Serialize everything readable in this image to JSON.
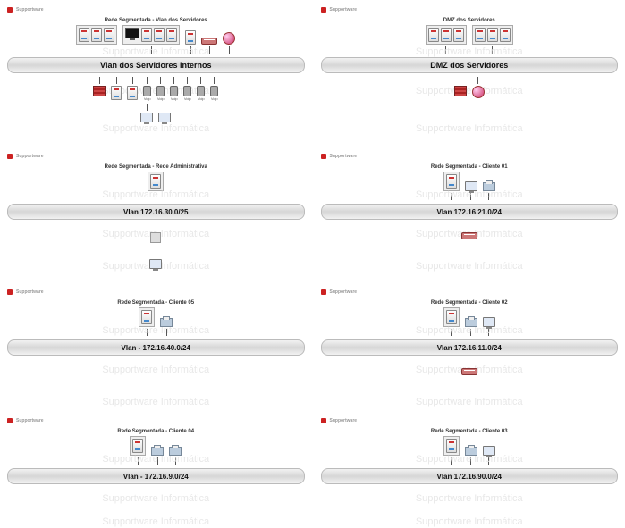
{
  "company_logo_text": "Supportware",
  "watermark_text": "Supportware Informática",
  "device_types": {
    "server": "server",
    "pc": "pc",
    "monitor": "monitor",
    "switch": "switch",
    "router": "router",
    "firewall": "firewall",
    "phone": "phone",
    "printer": "printer"
  },
  "icon_colors": {
    "server_accent_top": "#cc3333",
    "server_accent_bot": "#4488cc",
    "switch_color": "#cc7777",
    "router_color": "#cc3366",
    "firewall_color": "#cc4444"
  },
  "panels": [
    {
      "id": "p-internos",
      "title": "Rede Segmentada - Vlan dos Servidores",
      "bus_label": "Vlan dos Servidores Internos",
      "size": "tall",
      "watermarks": [
        44,
        88,
        130
      ],
      "above": {
        "boxed_groups": [
          {
            "devices": [
              {
                "type": "server",
                "label": ""
              },
              {
                "type": "server",
                "label": ""
              },
              {
                "type": "server",
                "label": ""
              }
            ]
          },
          {
            "devices": [
              {
                "type": "monitor",
                "label": ""
              },
              {
                "type": "server",
                "label": ""
              },
              {
                "type": "server",
                "label": ""
              },
              {
                "type": "server",
                "label": ""
              }
            ]
          }
        ],
        "loose": [
          {
            "type": "server",
            "label": ""
          },
          {
            "type": "switch",
            "label": ""
          },
          {
            "type": "router",
            "label": ""
          }
        ]
      },
      "below": {
        "devices": [
          {
            "type": "firewall",
            "label": ""
          },
          {
            "type": "server",
            "label": ""
          },
          {
            "type": "server",
            "label": ""
          },
          {
            "type": "phone",
            "label": "Voip"
          },
          {
            "type": "phone",
            "label": "Voip"
          },
          {
            "type": "phone",
            "label": "Voip"
          },
          {
            "type": "phone",
            "label": "Voip"
          },
          {
            "type": "phone",
            "label": "Voip"
          },
          {
            "type": "phone",
            "label": "Voip"
          }
        ],
        "second_row": [
          {
            "type": "pc",
            "label": ""
          },
          {
            "type": "pc",
            "label": ""
          }
        ]
      }
    },
    {
      "id": "p-dmz",
      "title": "DMZ dos Servidores",
      "bus_label": "DMZ dos Servidores",
      "size": "tall",
      "watermarks": [
        44,
        88,
        130
      ],
      "above": {
        "boxed_groups": [
          {
            "devices": [
              {
                "type": "server",
                "label": ""
              },
              {
                "type": "server",
                "label": ""
              },
              {
                "type": "server",
                "label": ""
              }
            ]
          },
          {
            "devices": [
              {
                "type": "server",
                "label": ""
              },
              {
                "type": "server",
                "label": ""
              },
              {
                "type": "server",
                "label": ""
              }
            ]
          }
        ],
        "loose": []
      },
      "below": {
        "devices": [
          {
            "type": "firewall",
            "label": ""
          },
          {
            "type": "router",
            "label": ""
          }
        ],
        "second_row": []
      }
    },
    {
      "id": "p-admin",
      "title": "Rede Segmentada - Rede Administrativa",
      "bus_label": "Vlan 172.16.30.0/25",
      "size": "normal",
      "watermarks": [
        40,
        84,
        120
      ],
      "above": {
        "boxed_groups": [
          {
            "devices": [
              {
                "type": "server",
                "label": ""
              }
            ]
          }
        ],
        "loose": []
      },
      "below": {
        "devices": [
          {
            "type": "generic",
            "label": ""
          }
        ],
        "second_row": [
          {
            "type": "pc",
            "label": ""
          }
        ]
      }
    },
    {
      "id": "p-c01",
      "title": "Rede Segmentada - Cliente 01",
      "bus_label": "Vlan 172.16.21.0/24",
      "size": "normal",
      "watermarks": [
        40,
        84,
        120
      ],
      "above": {
        "boxed_groups": [
          {
            "devices": [
              {
                "type": "server",
                "label": ""
              }
            ]
          }
        ],
        "loose": [
          {
            "type": "pc",
            "label": ""
          },
          {
            "type": "printer",
            "label": ""
          }
        ]
      },
      "below": {
        "devices": [
          {
            "type": "switch",
            "label": ""
          }
        ],
        "second_row": []
      }
    },
    {
      "id": "p-c05",
      "title": "Rede Segmentada - Cliente 05",
      "bus_label": "Vlan - 172.16.40.0/24",
      "size": "normal",
      "watermarks": [
        40,
        84,
        120
      ],
      "above": {
        "boxed_groups": [
          {
            "devices": [
              {
                "type": "server",
                "label": ""
              }
            ]
          }
        ],
        "loose": [
          {
            "type": "printer",
            "label": ""
          }
        ]
      },
      "below": {
        "devices": [],
        "second_row": []
      }
    },
    {
      "id": "p-c02",
      "title": "Rede Segmentada - Cliente 02",
      "bus_label": "Vlan 172.16.11.0/24",
      "size": "normal",
      "watermarks": [
        40,
        84,
        120
      ],
      "above": {
        "boxed_groups": [
          {
            "devices": [
              {
                "type": "server",
                "label": ""
              }
            ]
          }
        ],
        "loose": [
          {
            "type": "printer",
            "label": ""
          },
          {
            "type": "pc",
            "label": ""
          }
        ]
      },
      "below": {
        "devices": [
          {
            "type": "switch",
            "label": ""
          }
        ],
        "second_row": []
      }
    },
    {
      "id": "p-c04",
      "title": "Rede Segmentada - Cliente 04",
      "bus_label": "Vlan - 172.16.9.0/24",
      "size": "short",
      "watermarks": [
        40,
        84,
        110
      ],
      "above": {
        "boxed_groups": [
          {
            "devices": [
              {
                "type": "server",
                "label": ""
              }
            ]
          }
        ],
        "loose": [
          {
            "type": "printer",
            "label": ""
          },
          {
            "type": "printer",
            "label": ""
          }
        ]
      },
      "below": {
        "devices": [],
        "second_row": []
      }
    },
    {
      "id": "p-c03",
      "title": "Rede Segmentada - Cliente 03",
      "bus_label": "Vlan 172.16.90.0/24",
      "size": "short",
      "watermarks": [
        40,
        84,
        110
      ],
      "above": {
        "boxed_groups": [
          {
            "devices": [
              {
                "type": "server",
                "label": ""
              }
            ]
          }
        ],
        "loose": [
          {
            "type": "printer",
            "label": ""
          },
          {
            "type": "pc",
            "label": ""
          }
        ]
      },
      "below": {
        "devices": [],
        "second_row": []
      }
    }
  ]
}
